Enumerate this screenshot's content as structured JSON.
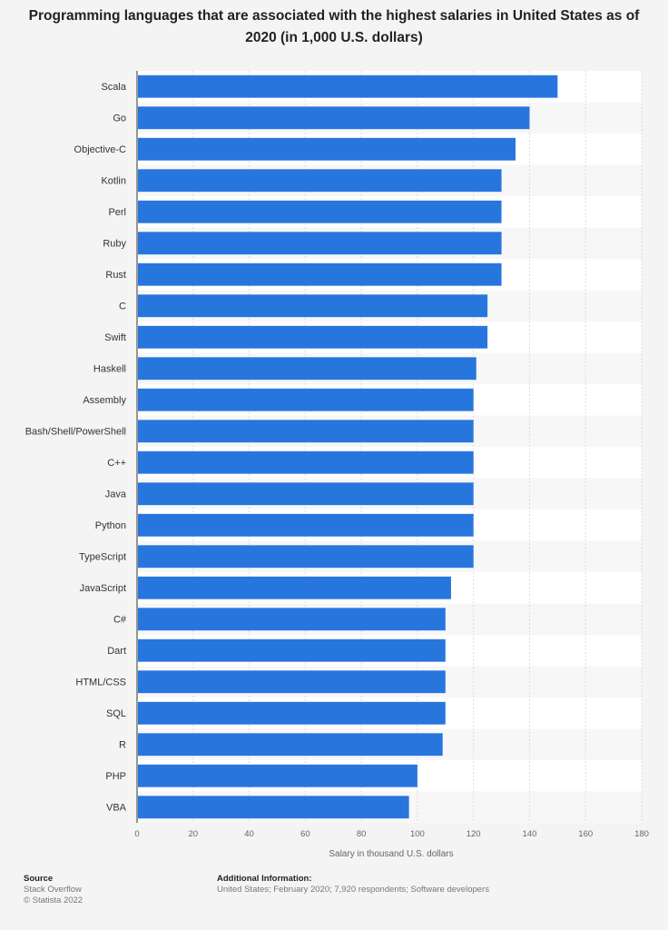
{
  "chart_data": {
    "type": "bar",
    "orientation": "horizontal",
    "title": "Programming languages that are associated with the highest salaries in United States as of 2020 (in 1,000 U.S. dollars)",
    "xlabel": "Salary in thousand U.S. dollars",
    "ylabel": "",
    "xlim": [
      0,
      180
    ],
    "xticks": [
      0,
      20,
      40,
      60,
      80,
      100,
      120,
      140,
      160,
      180
    ],
    "grid": true,
    "legend": "none",
    "bar_color": "#2776de",
    "categories": [
      "Scala",
      "Go",
      "Objective-C",
      "Kotlin",
      "Perl",
      "Ruby",
      "Rust",
      "C",
      "Swift",
      "Haskell",
      "Assembly",
      "Bash/Shell/PowerShell",
      "C++",
      "Java",
      "Python",
      "TypeScript",
      "JavaScript",
      "C#",
      "Dart",
      "HTML/CSS",
      "SQL",
      "R",
      "PHP",
      "VBA"
    ],
    "values": [
      150,
      140,
      135,
      130,
      130,
      130,
      130,
      125,
      125,
      121,
      120,
      120,
      120,
      120,
      120,
      120,
      112,
      110,
      110,
      110,
      110,
      109,
      100,
      97
    ]
  },
  "footer": {
    "source_label": "Source",
    "source_lines": [
      "Stack Overflow",
      "© Statista 2022"
    ],
    "info_label": "Additional Information:",
    "info_text": "United States; February 2020; 7,920 respondents; Software developers"
  }
}
